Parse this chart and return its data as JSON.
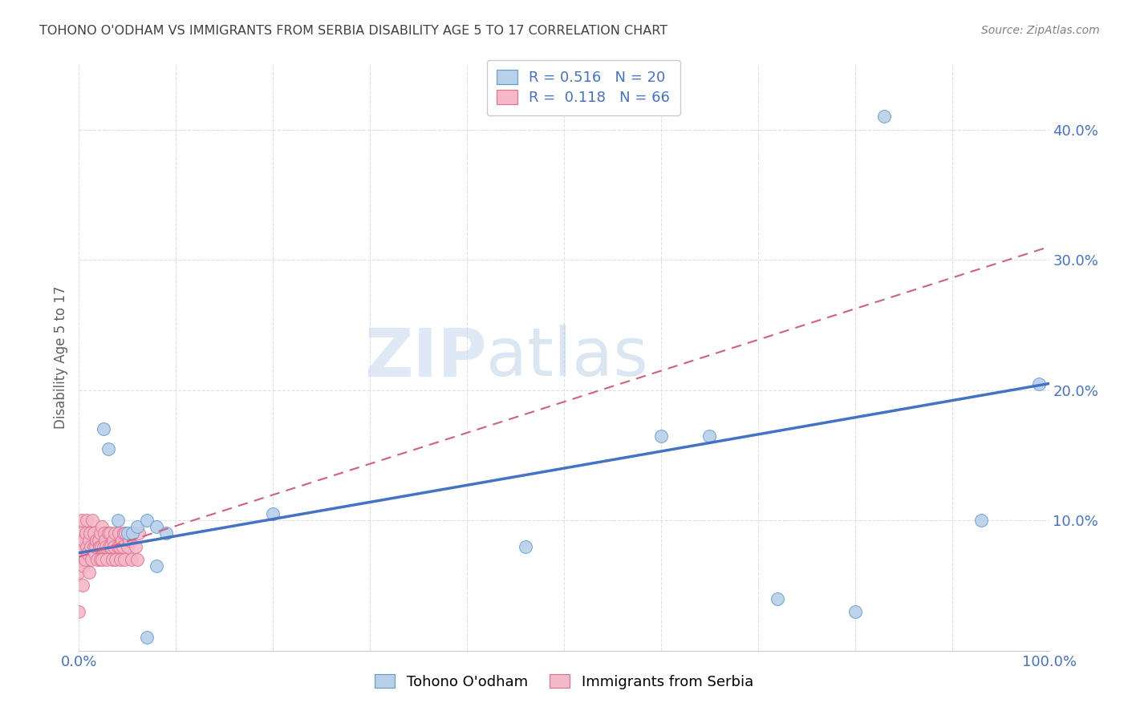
{
  "title": "TOHONO O'ODHAM VS IMMIGRANTS FROM SERBIA DISABILITY AGE 5 TO 17 CORRELATION CHART",
  "source": "Source: ZipAtlas.com",
  "ylabel_label": "Disability Age 5 to 17",
  "xlim": [
    0.0,
    1.0
  ],
  "ylim": [
    0.0,
    0.45
  ],
  "xticks": [
    0.0,
    0.1,
    0.2,
    0.3,
    0.4,
    0.5,
    0.6,
    0.7,
    0.8,
    0.9,
    1.0
  ],
  "xtick_labels": [
    "0.0%",
    "",
    "",
    "",
    "",
    "",
    "",
    "",
    "",
    "",
    "100.0%"
  ],
  "yticks": [
    0.0,
    0.1,
    0.2,
    0.3,
    0.4
  ],
  "ytick_labels": [
    "",
    "10.0%",
    "20.0%",
    "30.0%",
    "40.0%"
  ],
  "watermark_zip": "ZIP",
  "watermark_atlas": "atlas",
  "blue_color": "#b8d0e8",
  "blue_edge_color": "#5b9bd5",
  "blue_line_color": "#4472c4",
  "pink_color": "#f4b8c8",
  "pink_edge_color": "#e07090",
  "pink_line_color": "#d06080",
  "blue_scatter_x": [
    0.025,
    0.03,
    0.04,
    0.05,
    0.055,
    0.06,
    0.07,
    0.08,
    0.09,
    0.2,
    0.46,
    0.6,
    0.65,
    0.72,
    0.8,
    0.83,
    0.93,
    0.99,
    0.07,
    0.08
  ],
  "blue_scatter_y": [
    0.17,
    0.155,
    0.1,
    0.09,
    0.09,
    0.095,
    0.1,
    0.095,
    0.09,
    0.105,
    0.08,
    0.165,
    0.165,
    0.04,
    0.03,
    0.41,
    0.1,
    0.205,
    0.01,
    0.065
  ],
  "pink_scatter_x": [
    0.0,
    0.0,
    0.0,
    0.001,
    0.001,
    0.002,
    0.002,
    0.003,
    0.003,
    0.004,
    0.005,
    0.005,
    0.006,
    0.007,
    0.008,
    0.008,
    0.009,
    0.01,
    0.01,
    0.011,
    0.012,
    0.013,
    0.014,
    0.015,
    0.015,
    0.016,
    0.017,
    0.018,
    0.019,
    0.02,
    0.021,
    0.022,
    0.022,
    0.023,
    0.024,
    0.024,
    0.025,
    0.026,
    0.027,
    0.028,
    0.029,
    0.03,
    0.031,
    0.032,
    0.033,
    0.034,
    0.035,
    0.036,
    0.037,
    0.038,
    0.04,
    0.041,
    0.042,
    0.043,
    0.044,
    0.045,
    0.046,
    0.047,
    0.048,
    0.05,
    0.052,
    0.054,
    0.056,
    0.058,
    0.06,
    0.062
  ],
  "pink_scatter_y": [
    0.08,
    0.06,
    0.03,
    0.085,
    0.07,
    0.09,
    0.075,
    0.1,
    0.08,
    0.05,
    0.065,
    0.085,
    0.07,
    0.09,
    0.08,
    0.1,
    0.075,
    0.085,
    0.06,
    0.09,
    0.08,
    0.07,
    0.1,
    0.09,
    0.08,
    0.075,
    0.08,
    0.085,
    0.07,
    0.085,
    0.08,
    0.07,
    0.09,
    0.08,
    0.095,
    0.07,
    0.08,
    0.09,
    0.085,
    0.08,
    0.07,
    0.09,
    0.08,
    0.09,
    0.08,
    0.07,
    0.085,
    0.08,
    0.09,
    0.07,
    0.08,
    0.09,
    0.08,
    0.07,
    0.085,
    0.08,
    0.09,
    0.07,
    0.09,
    0.08,
    0.085,
    0.07,
    0.09,
    0.08,
    0.07,
    0.09
  ],
  "blue_line_x": [
    0.0,
    1.0
  ],
  "blue_line_y": [
    0.075,
    0.205
  ],
  "pink_line_x": [
    0.0,
    1.0
  ],
  "pink_line_y": [
    0.072,
    0.31
  ],
  "bg_color": "#ffffff",
  "grid_color": "#d8d8d8",
  "tick_color": "#4472c4",
  "title_color": "#404040",
  "source_color": "#808080",
  "ylabel_color": "#606060"
}
